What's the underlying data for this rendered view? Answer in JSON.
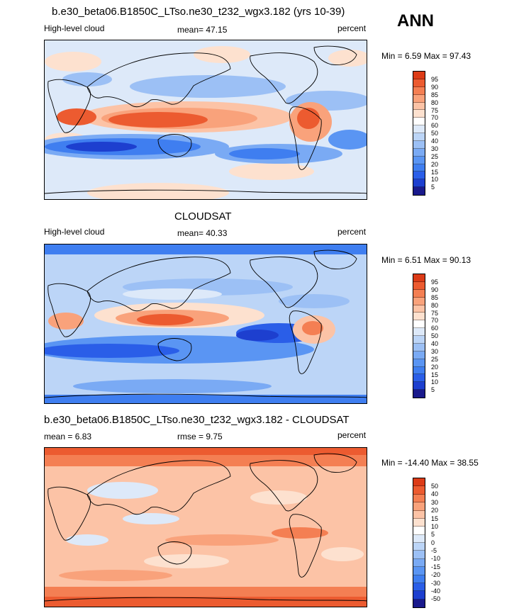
{
  "season": "ANN",
  "colors": {
    "abs": [
      "#1a1a8c",
      "#1d3fcf",
      "#2a5ee8",
      "#3f7ef0",
      "#5a95f3",
      "#7aaaf4",
      "#9cc0f5",
      "#bcd5f7",
      "#dde9f9",
      "#ffffff",
      "#fde1cf",
      "#fcc3a6",
      "#f9a27b",
      "#f47f53",
      "#ec5b30",
      "#dc3b17",
      "#c0260d",
      "#8c1408"
    ],
    "diff": [
      "#1a1a8c",
      "#1d3fcf",
      "#2a5ee8",
      "#3f7ef0",
      "#5a95f3",
      "#7aaaf4",
      "#9cc0f5",
      "#bcd5f7",
      "#dde9f9",
      "#ffffff",
      "#fde1cf",
      "#fcc3a6",
      "#f9a27b",
      "#f47f53",
      "#ec5b30",
      "#dc3b17",
      "#c0260d",
      "#8c1408"
    ]
  },
  "panels": [
    {
      "title": "b.e30_beta06.B1850C_LTso.ne30_t232_wgx3.182 (yrs 10-39)",
      "left_label": "High-level cloud",
      "center_label": "mean=  47.15",
      "right_label": "percent",
      "minmax": "Min =   6.59 Max =  97.43",
      "levels": [
        "95",
        "90",
        "85",
        "80",
        "75",
        "70",
        "60",
        "50",
        "40",
        "30",
        "25",
        "20",
        "15",
        "10",
        "5"
      ]
    },
    {
      "title": "CLOUDSAT",
      "left_label": "High-level cloud",
      "center_label": "mean=  40.33",
      "right_label": "percent",
      "minmax": "Min =   6.51 Max =  90.13",
      "levels": [
        "95",
        "90",
        "85",
        "80",
        "75",
        "70",
        "60",
        "50",
        "40",
        "30",
        "25",
        "20",
        "15",
        "10",
        "5"
      ]
    },
    {
      "title": "b.e30_beta06.B1850C_LTso.ne30_t232_wgx3.182 - CLOUDSAT",
      "left_label": "mean =   6.83",
      "center_label": "rmse =    9.75",
      "right_label": "percent",
      "minmax": "Min = -14.40 Max =  38.55",
      "levels": [
        "50",
        "40",
        "30",
        "20",
        "15",
        "10",
        "5",
        "0",
        "-5",
        "-10",
        "-15",
        "-20",
        "-30",
        "-40",
        "-50"
      ]
    }
  ]
}
